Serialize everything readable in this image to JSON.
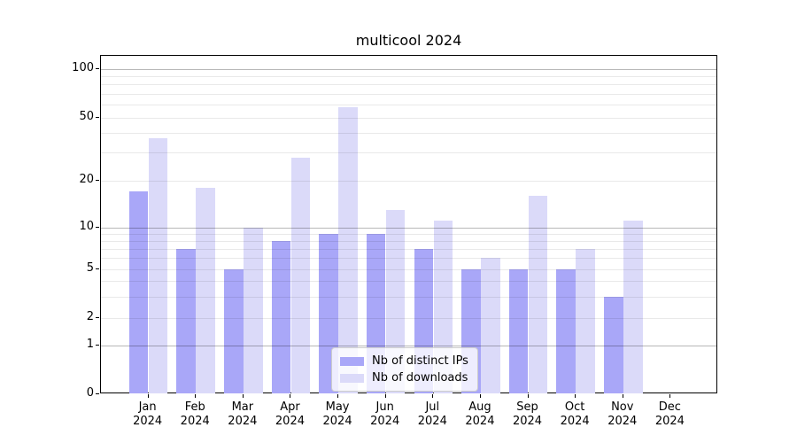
{
  "chart_data": {
    "type": "bar",
    "title": "multicool 2024",
    "categories": [
      "Jan",
      "Feb",
      "Mar",
      "Apr",
      "May",
      "Jun",
      "Jul",
      "Aug",
      "Sep",
      "Oct",
      "Nov",
      "Dec"
    ],
    "year": "2024",
    "series": [
      {
        "name": "Nb of distinct IPs",
        "color": "#a9a7f8",
        "values": [
          17,
          7,
          5,
          8,
          9,
          9,
          7,
          5,
          5,
          5,
          3,
          0
        ]
      },
      {
        "name": "Nb of downloads",
        "color": "#dbdaf9",
        "values": [
          37,
          18,
          10,
          28,
          58,
          13,
          11,
          6,
          16,
          7,
          11,
          0
        ]
      }
    ],
    "xlabel": "",
    "ylabel": "",
    "yscale": "symlog",
    "ylim": [
      0,
      125
    ],
    "yticks": [
      0,
      1,
      2,
      5,
      10,
      20,
      50,
      100
    ],
    "minor_gridlines": [
      2,
      3,
      4,
      5,
      6,
      7,
      8,
      9,
      20,
      30,
      40,
      50,
      60,
      70,
      80,
      90
    ],
    "major_gridlines": [
      1,
      10,
      100
    ],
    "grid": true,
    "legend_position": "lower center",
    "background_color": "#ffffff",
    "text_color": "#000000"
  }
}
